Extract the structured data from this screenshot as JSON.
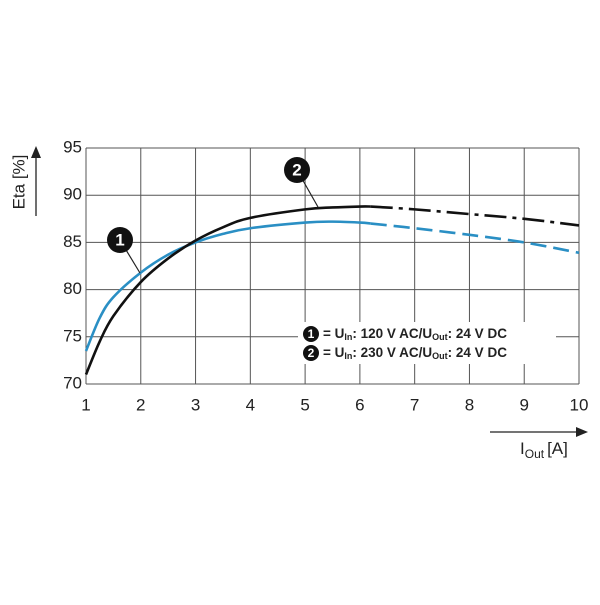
{
  "chart_data": {
    "type": "line",
    "y_label": "Eta [%]",
    "x_label": {
      "main": "I",
      "sub": "Out",
      "unit": "[A]"
    },
    "x": [
      1,
      1.25,
      1.5,
      2,
      2.5,
      3,
      3.5,
      4,
      5,
      5.5,
      6,
      6.2,
      7,
      8,
      9,
      10
    ],
    "series": [
      {
        "name": "1",
        "label_parts": [
          "= U",
          "In",
          ": 120 V AC/U",
          "Out",
          ": 24 V DC"
        ],
        "color": "#2a8fc4",
        "dash_from_x": 6.2,
        "values": [
          73.5,
          77,
          79.2,
          81.8,
          83.7,
          85.0,
          85.9,
          86.5,
          87.1,
          87.2,
          87.1,
          87.0,
          86.5,
          85.8,
          85.0,
          83.9
        ]
      },
      {
        "name": "2",
        "label_parts": [
          "= U",
          "In",
          ": 230 V AC/U",
          "Out",
          ": 24 V DC"
        ],
        "color": "#111111",
        "dash_from_x": 6.2,
        "values": [
          71,
          74.5,
          77.2,
          80.8,
          83.3,
          85.2,
          86.6,
          87.6,
          88.5,
          88.7,
          88.8,
          88.8,
          88.5,
          88.0,
          87.5,
          86.8
        ]
      }
    ],
    "xlim": [
      1,
      10
    ],
    "xticks": [
      1,
      2,
      3,
      4,
      5,
      6,
      7,
      8,
      9,
      10
    ],
    "ylim": [
      70,
      95
    ],
    "yticks": [
      70,
      75,
      80,
      85,
      90,
      95
    ],
    "grid": true
  }
}
